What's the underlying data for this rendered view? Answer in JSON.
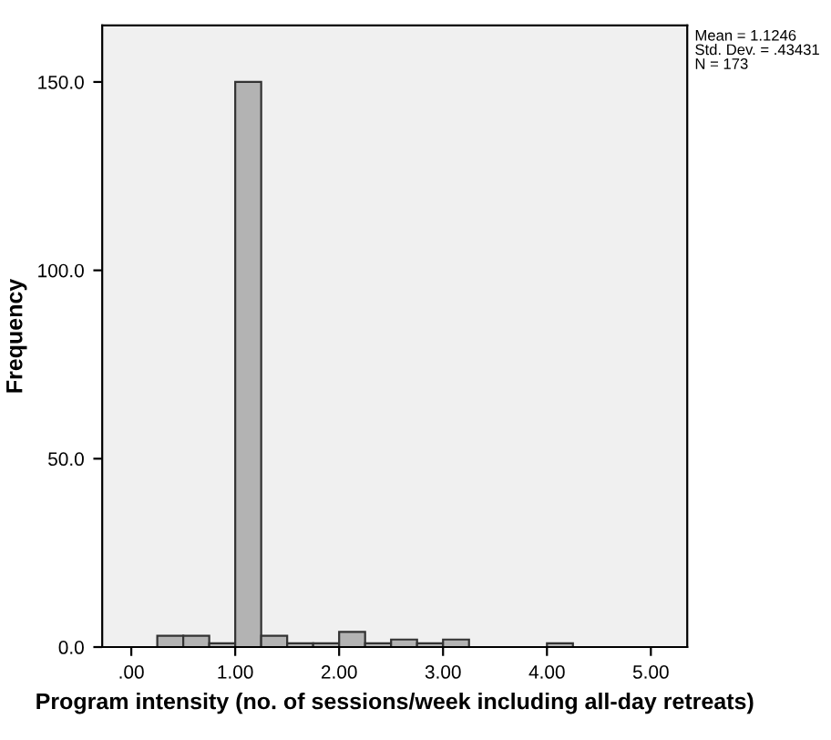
{
  "chart_data": {
    "type": "histogram",
    "xlabel": "Program intensity (no. of sessions/week including all-day retreats)",
    "ylabel": "Frequency",
    "bins": [
      0.25,
      0.5,
      0.75,
      1.0,
      1.25,
      1.5,
      1.75,
      2.0,
      2.25,
      2.5,
      2.75,
      3.0,
      3.25,
      3.5,
      3.75,
      4.0,
      4.25
    ],
    "values": [
      3,
      3,
      1,
      150,
      3,
      1,
      1,
      4,
      1,
      2,
      1,
      2,
      0,
      0,
      0,
      1
    ],
    "color": "#b3b3b3",
    "xlim": [
      -0.28,
      5.35
    ],
    "ylim": [
      0,
      165
    ],
    "xticks": [
      {
        "value": 0,
        "label": ".00"
      },
      {
        "value": 1,
        "label": "1.00"
      },
      {
        "value": 2,
        "label": "2.00"
      },
      {
        "value": 3,
        "label": "3.00"
      },
      {
        "value": 4,
        "label": "4.00"
      },
      {
        "value": 5,
        "label": "5.00"
      }
    ],
    "yticks": [
      {
        "value": 0,
        "label": "0.0"
      },
      {
        "value": 50,
        "label": "50.0"
      },
      {
        "value": 100,
        "label": "100.0"
      },
      {
        "value": 150,
        "label": "150.0"
      }
    ],
    "grid": false,
    "annotations": [
      "Mean = 1.1246\nStd. Dev. = .43431\nN = 173"
    ]
  }
}
